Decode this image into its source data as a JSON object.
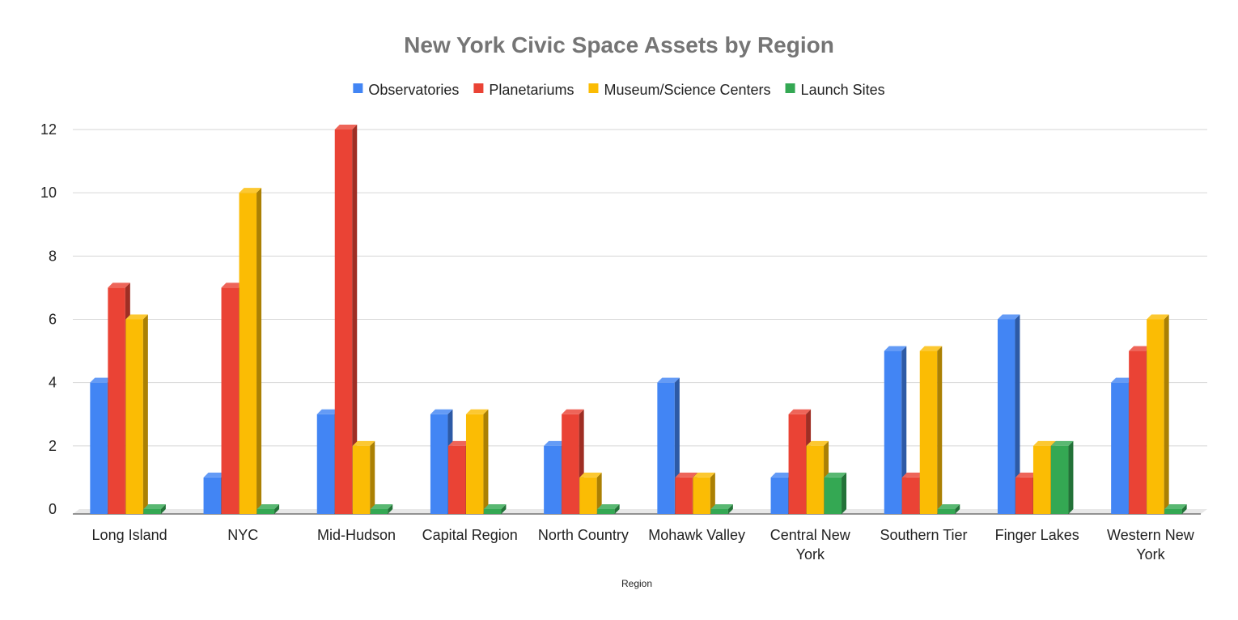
{
  "chart_data": {
    "type": "bar",
    "title": "New York Civic Space Assets by Region",
    "xlabel": "Region",
    "ylabel": "",
    "ylim": [
      0,
      12
    ],
    "yticks": [
      0,
      2,
      4,
      6,
      8,
      10,
      12
    ],
    "legend_position": "top",
    "grid": true,
    "style": "3d",
    "categories": [
      "Long Island",
      "NYC",
      "Mid-Hudson",
      "Capital Region",
      "North Country",
      "Mohawk Valley",
      "Central New York",
      "Southern Tier",
      "Finger Lakes",
      "Western New York"
    ],
    "series": [
      {
        "name": "Observatories",
        "color": "#4285f4",
        "values": [
          4,
          1,
          3,
          3,
          2,
          4,
          1,
          5,
          6,
          4
        ]
      },
      {
        "name": "Planetariums",
        "color": "#ea4335",
        "values": [
          7,
          7,
          12,
          2,
          3,
          1,
          3,
          1,
          1,
          5
        ]
      },
      {
        "name": "Museum/Science Centers",
        "color": "#fbbc04",
        "values": [
          6,
          10,
          2,
          3,
          1,
          1,
          2,
          5,
          2,
          6
        ]
      },
      {
        "name": "Launch Sites",
        "color": "#34a853",
        "values": [
          0,
          0,
          0,
          0,
          0,
          0,
          1,
          0,
          2,
          0
        ]
      }
    ]
  }
}
